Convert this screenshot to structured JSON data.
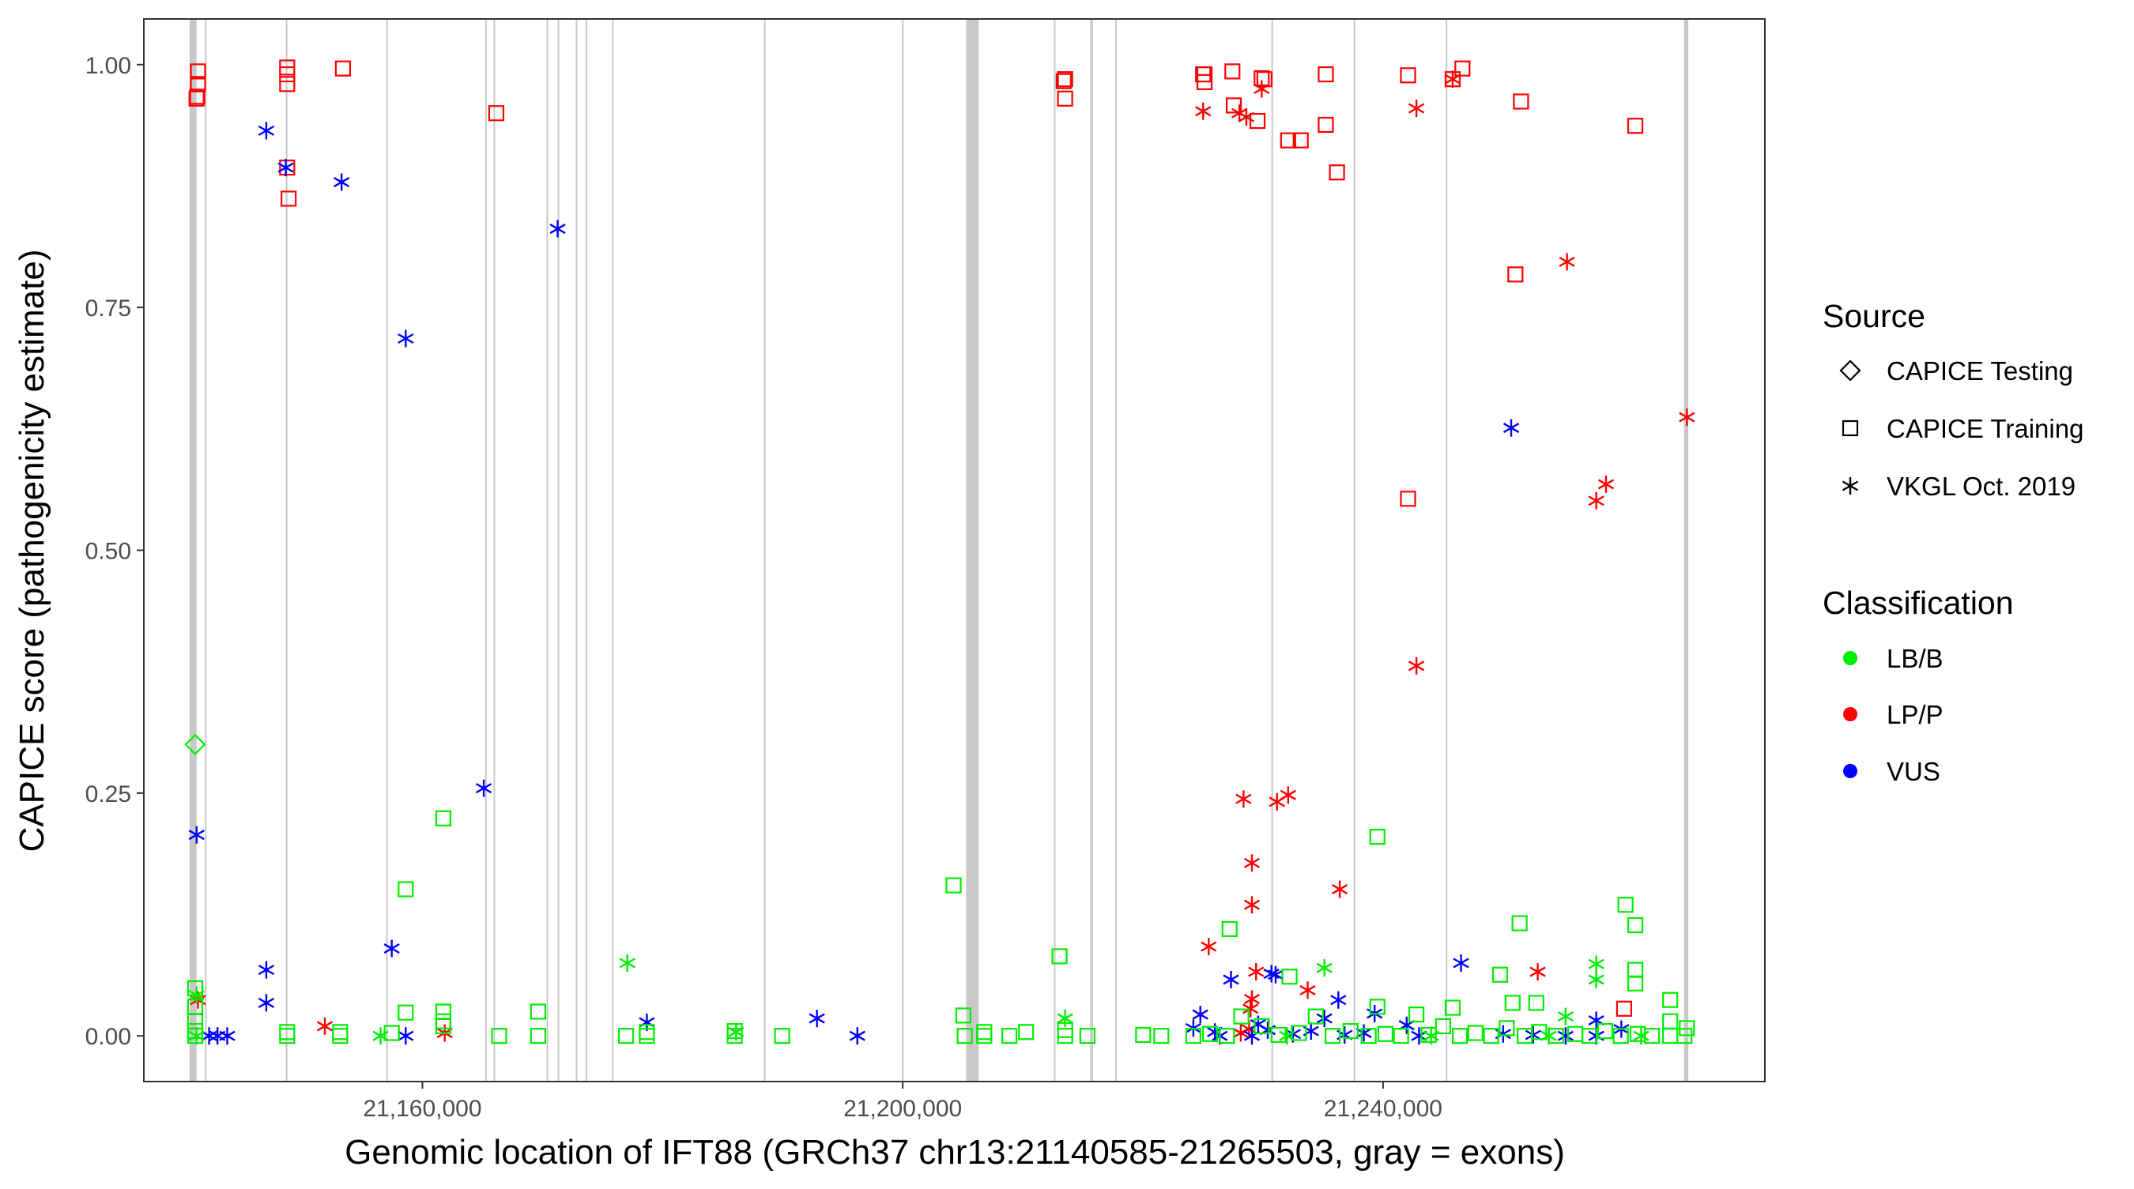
{
  "chart_data": {
    "type": "scatter",
    "title": "",
    "xlabel": "Genomic location of IFT88 (GRCh37 chr13:21140585-21265503, gray = exons)",
    "ylabel": "CAPICE score (pathogenicity estimate)",
    "xlim": [
      21136800,
      21271800
    ],
    "ylim": [
      -0.047,
      1.047
    ],
    "xticks": [
      21160000,
      21200000,
      21240000
    ],
    "xtick_labels": [
      "21,160,000",
      "21,200,000",
      "21,240,000"
    ],
    "yticks": [
      0,
      0.25,
      0.5,
      0.75,
      1.0
    ],
    "ytick_labels": [
      "0.00",
      "0.25",
      "0.50",
      "0.75",
      "1.00"
    ],
    "grid": false,
    "legend_placement": "right",
    "legend": {
      "source_title": "Source",
      "sources": [
        "CAPICE Testing",
        "CAPICE Training",
        "VKGL Oct. 2019"
      ],
      "class_title": "Classification",
      "classes": [
        "LB/B",
        "LP/P",
        "VUS"
      ],
      "class_colors": [
        "#00ee00",
        "#ff0000",
        "#0000ff"
      ]
    },
    "exon_color": "#c8c8c8",
    "exons": [
      [
        21140612,
        21141192
      ],
      [
        21141888,
        21141950
      ],
      [
        21148622,
        21148680
      ],
      [
        21156981,
        21157040
      ],
      [
        21165225,
        21165280
      ],
      [
        21165921,
        21165980
      ],
      [
        21170333,
        21170390
      ],
      [
        21171262,
        21171320
      ],
      [
        21172771,
        21172830
      ],
      [
        21173584,
        21173640
      ],
      [
        21175790,
        21175850
      ],
      [
        21188444,
        21188500
      ],
      [
        21199938,
        21199990
      ],
      [
        21205279,
        21206324
      ],
      [
        21212592,
        21212650
      ],
      [
        21215611,
        21215844
      ],
      [
        21217700,
        21217760
      ],
      [
        21230704,
        21230760
      ],
      [
        21237554,
        21237650
      ],
      [
        21245217,
        21245270
      ],
      [
        21265070,
        21265418
      ]
    ],
    "point_fields": [
      "position",
      "score",
      "source_index",
      "class_index"
    ],
    "points": [
      [
        21141076,
        0.3,
        0,
        0
      ],
      [
        21141308,
        0.993,
        1,
        1
      ],
      [
        21141308,
        0.98,
        1,
        1
      ],
      [
        21141250,
        0.967,
        1,
        1
      ],
      [
        21141190,
        0.965,
        1,
        1
      ],
      [
        21148738,
        0.997,
        1,
        1
      ],
      [
        21148738,
        0.99,
        1,
        1
      ],
      [
        21148738,
        0.98,
        1,
        1
      ],
      [
        21148738,
        0.894,
        1,
        1
      ],
      [
        21148854,
        0.862,
        1,
        1
      ],
      [
        21153382,
        0.996,
        1,
        1
      ],
      [
        21166153,
        0.95,
        1,
        1
      ],
      [
        21213406,
        0.983,
        1,
        1
      ],
      [
        21213522,
        0.985,
        1,
        1
      ],
      [
        21213522,
        0.965,
        1,
        1
      ],
      [
        21225016,
        0.99,
        1,
        1
      ],
      [
        21225132,
        0.982,
        1,
        1
      ],
      [
        21225132,
        0.99,
        1,
        1
      ],
      [
        21227454,
        0.993,
        1,
        1
      ],
      [
        21227570,
        0.958,
        1,
        1
      ],
      [
        21229544,
        0.942,
        1,
        1
      ],
      [
        21229892,
        0.986,
        1,
        1
      ],
      [
        21230124,
        0.985,
        1,
        1
      ],
      [
        21232098,
        0.922,
        1,
        1
      ],
      [
        21233143,
        0.922,
        1,
        1
      ],
      [
        21235233,
        0.99,
        1,
        1
      ],
      [
        21235233,
        0.938,
        1,
        1
      ],
      [
        21236162,
        0.889,
        1,
        1
      ],
      [
        21242083,
        0.989,
        1,
        1
      ],
      [
        21246611,
        0.996,
        1,
        1
      ],
      [
        21245798,
        0.985,
        1,
        1
      ],
      [
        21251487,
        0.962,
        1,
        1
      ],
      [
        21261007,
        0.937,
        1,
        1
      ],
      [
        21251022,
        0.784,
        1,
        1
      ],
      [
        21242083,
        0.553,
        1,
        1
      ],
      [
        21260078,
        0.028,
        1,
        1
      ],
      [
        21141308,
        0.037,
        2,
        1
      ],
      [
        21151873,
        0.01,
        2,
        1
      ],
      [
        21161858,
        0.003,
        2,
        1
      ],
      [
        21225016,
        0.952,
        2,
        1
      ],
      [
        21228035,
        0.95,
        2,
        1
      ],
      [
        21228615,
        0.946,
        2,
        1
      ],
      [
        21229892,
        0.975,
        2,
        1
      ],
      [
        21242779,
        0.955,
        2,
        1
      ],
      [
        21245798,
        0.985,
        2,
        1
      ],
      [
        21255318,
        0.797,
        2,
        1
      ],
      [
        21258569,
        0.568,
        2,
        1
      ],
      [
        21257756,
        0.551,
        2,
        1
      ],
      [
        21265303,
        0.637,
        2,
        1
      ],
      [
        21242779,
        0.381,
        2,
        1
      ],
      [
        21228383,
        0.244,
        2,
        1
      ],
      [
        21231169,
        0.241,
        2,
        1
      ],
      [
        21232098,
        0.248,
        2,
        1
      ],
      [
        21229079,
        0.178,
        2,
        1
      ],
      [
        21229079,
        0.135,
        2,
        1
      ],
      [
        21236394,
        0.151,
        2,
        1
      ],
      [
        21225480,
        0.092,
        2,
        1
      ],
      [
        21233724,
        0.047,
        2,
        1
      ],
      [
        21252880,
        0.066,
        2,
        1
      ],
      [
        21229428,
        0.066,
        2,
        1
      ],
      [
        21229079,
        0.038,
        2,
        1
      ],
      [
        21228963,
        0.028,
        2,
        1
      ],
      [
        21228847,
        0.007,
        2,
        1
      ],
      [
        21228151,
        0.003,
        2,
        1
      ],
      [
        21146997,
        0.932,
        2,
        2
      ],
      [
        21148622,
        0.894,
        2,
        2
      ],
      [
        21153266,
        0.879,
        2,
        2
      ],
      [
        21171262,
        0.831,
        2,
        2
      ],
      [
        21158607,
        0.718,
        2,
        2
      ],
      [
        21250674,
        0.626,
        2,
        2
      ],
      [
        21165108,
        0.255,
        2,
        2
      ],
      [
        21141192,
        0.207,
        2,
        2
      ],
      [
        21157446,
        0.09,
        2,
        2
      ],
      [
        21146997,
        0.068,
        2,
        2
      ],
      [
        21146997,
        0.034,
        2,
        2
      ],
      [
        21227338,
        0.058,
        2,
        2
      ],
      [
        21230705,
        0.064,
        2,
        2
      ],
      [
        21231053,
        0.063,
        2,
        2
      ],
      [
        21246495,
        0.075,
        2,
        2
      ],
      [
        21236278,
        0.037,
        2,
        2
      ],
      [
        21239296,
        0.023,
        2,
        2
      ],
      [
        21178692,
        0.014,
        2,
        2
      ],
      [
        21192856,
        0.018,
        2,
        2
      ],
      [
        21196223,
        0.0,
        2,
        2
      ],
      [
        21158607,
        0.0,
        2,
        2
      ],
      [
        21142237,
        0.0,
        2,
        2
      ],
      [
        21142933,
        0.0,
        2,
        2
      ],
      [
        21143746,
        0.0,
        2,
        2
      ],
      [
        21224784,
        0.022,
        2,
        2
      ],
      [
        21257756,
        0.016,
        2,
        2
      ],
      [
        21259846,
        0.007,
        2,
        2
      ],
      [
        21241967,
        0.011,
        2,
        2
      ],
      [
        21235117,
        0.018,
        2,
        2
      ],
      [
        21224203,
        0.008,
        2,
        2
      ],
      [
        21226000,
        0.004,
        2,
        2
      ],
      [
        21229600,
        0.012,
        2,
        2
      ],
      [
        21230400,
        0.006,
        2,
        2
      ],
      [
        21232500,
        0.002,
        2,
        2
      ],
      [
        21234000,
        0.005,
        2,
        2
      ],
      [
        21236800,
        0.001,
        2,
        2
      ],
      [
        21238400,
        0.003,
        2,
        2
      ],
      [
        21243000,
        0.0,
        2,
        2
      ],
      [
        21250000,
        0.002,
        2,
        2
      ],
      [
        21252500,
        0.001,
        2,
        2
      ],
      [
        21255202,
        0.0,
        2,
        2
      ],
      [
        21257756,
        0.0,
        2,
        2
      ],
      [
        21229079,
        0.0,
        2,
        2
      ],
      [
        21226400,
        0.0,
        2,
        2
      ],
      [
        21161742,
        0.224,
        1,
        0
      ],
      [
        21158607,
        0.151,
        1,
        0
      ],
      [
        21204234,
        0.155,
        1,
        0
      ],
      [
        21239529,
        0.205,
        1,
        0
      ],
      [
        21260194,
        0.135,
        1,
        0
      ],
      [
        21261007,
        0.114,
        1,
        0
      ],
      [
        21251370,
        0.116,
        1,
        0
      ],
      [
        21227222,
        0.11,
        1,
        0
      ],
      [
        21213058,
        0.082,
        1,
        0
      ],
      [
        21249745,
        0.063,
        1,
        0
      ],
      [
        21261007,
        0.068,
        1,
        0
      ],
      [
        21261007,
        0.054,
        1,
        0
      ],
      [
        21263910,
        0.037,
        1,
        0
      ],
      [
        21232214,
        0.061,
        1,
        0
      ],
      [
        21250790,
        0.034,
        1,
        0
      ],
      [
        21252764,
        0.034,
        1,
        0
      ],
      [
        21245798,
        0.029,
        1,
        0
      ],
      [
        21169636,
        0.025,
        1,
        0
      ],
      [
        21158607,
        0.024,
        1,
        0
      ],
      [
        21161742,
        0.025,
        1,
        0
      ],
      [
        21161742,
        0.015,
        1,
        0
      ],
      [
        21161742,
        0.01,
        1,
        0
      ],
      [
        21205047,
        0.021,
        1,
        0
      ],
      [
        21242779,
        0.022,
        1,
        0
      ],
      [
        21239529,
        0.03,
        1,
        0
      ],
      [
        21141076,
        0.049,
        1,
        0
      ],
      [
        21141076,
        0.03,
        1,
        0
      ],
      [
        21141076,
        0.015,
        1,
        0
      ],
      [
        21141076,
        0.005,
        1,
        0
      ],
      [
        21141076,
        0.0,
        1,
        0
      ],
      [
        21148738,
        0.0,
        1,
        0
      ],
      [
        21148738,
        0.004,
        1,
        0
      ],
      [
        21153150,
        0.0,
        1,
        0
      ],
      [
        21153150,
        0.004,
        1,
        0
      ],
      [
        21157446,
        0.003,
        1,
        0
      ],
      [
        21166386,
        0.0,
        1,
        0
      ],
      [
        21169636,
        0.0,
        1,
        0
      ],
      [
        21176951,
        0.0,
        1,
        0
      ],
      [
        21178692,
        0.0,
        1,
        0
      ],
      [
        21178692,
        0.004,
        1,
        0
      ],
      [
        21186006,
        0.0,
        1,
        0
      ],
      [
        21186006,
        0.005,
        1,
        0
      ],
      [
        21189954,
        0.0,
        1,
        0
      ],
      [
        21205163,
        0.0,
        1,
        0
      ],
      [
        21206788,
        0.0,
        1,
        0
      ],
      [
        21206788,
        0.004,
        1,
        0
      ],
      [
        21208878,
        0.0,
        1,
        0
      ],
      [
        21210271,
        0.004,
        1,
        0
      ],
      [
        21213522,
        0.0,
        1,
        0
      ],
      [
        21213522,
        0.006,
        1,
        0
      ],
      [
        21215380,
        0.0,
        1,
        0
      ],
      [
        21220024,
        0.001,
        1,
        0
      ],
      [
        21221533,
        0.0,
        1,
        0
      ],
      [
        21224203,
        0.0,
        1,
        0
      ],
      [
        21225600,
        0.002,
        1,
        0
      ],
      [
        21227000,
        0.0,
        1,
        0
      ],
      [
        21228200,
        0.02,
        1,
        0
      ],
      [
        21229900,
        0.01,
        1,
        0
      ],
      [
        21231300,
        0.001,
        1,
        0
      ],
      [
        21233000,
        0.003,
        1,
        0
      ],
      [
        21234400,
        0.02,
        1,
        0
      ],
      [
        21235800,
        0.0,
        1,
        0
      ],
      [
        21237300,
        0.005,
        1,
        0
      ],
      [
        21238800,
        0.0,
        1,
        0
      ],
      [
        21240200,
        0.002,
        1,
        0
      ],
      [
        21241500,
        0.0,
        1,
        0
      ],
      [
        21243800,
        0.001,
        1,
        0
      ],
      [
        21245000,
        0.01,
        1,
        0
      ],
      [
        21246400,
        0.0,
        1,
        0
      ],
      [
        21247700,
        0.003,
        1,
        0
      ],
      [
        21249000,
        0.0,
        1,
        0
      ],
      [
        21250300,
        0.008,
        1,
        0
      ],
      [
        21251800,
        0.0,
        1,
        0
      ],
      [
        21253000,
        0.004,
        1,
        0
      ],
      [
        21254400,
        0.0,
        1,
        0
      ],
      [
        21256000,
        0.002,
        1,
        0
      ],
      [
        21257200,
        0.0,
        1,
        0
      ],
      [
        21258500,
        0.005,
        1,
        0
      ],
      [
        21259800,
        0.0,
        1,
        0
      ],
      [
        21261200,
        0.002,
        1,
        0
      ],
      [
        21262400,
        0.0,
        1,
        0
      ],
      [
        21263910,
        0.0,
        1,
        0
      ],
      [
        21263910,
        0.015,
        1,
        0
      ],
      [
        21265100,
        0.0,
        1,
        0
      ],
      [
        21265303,
        0.008,
        1,
        0
      ],
      [
        21177067,
        0.075,
        2,
        0
      ],
      [
        21235117,
        0.07,
        2,
        0
      ],
      [
        21257756,
        0.074,
        2,
        0
      ],
      [
        21257756,
        0.058,
        2,
        0
      ],
      [
        21213522,
        0.018,
        2,
        0
      ],
      [
        21156517,
        0.0,
        2,
        0
      ],
      [
        21255202,
        0.02,
        2,
        0
      ],
      [
        21186122,
        0.004,
        2,
        0
      ],
      [
        21141192,
        0.042,
        2,
        0
      ],
      [
        21141192,
        0.0,
        2,
        0
      ],
      [
        21232000,
        0.0,
        2,
        0
      ],
      [
        21244000,
        0.0,
        2,
        0
      ],
      [
        21253800,
        0.0,
        2,
        0
      ],
      [
        21261500,
        0.0,
        2,
        0
      ]
    ]
  }
}
